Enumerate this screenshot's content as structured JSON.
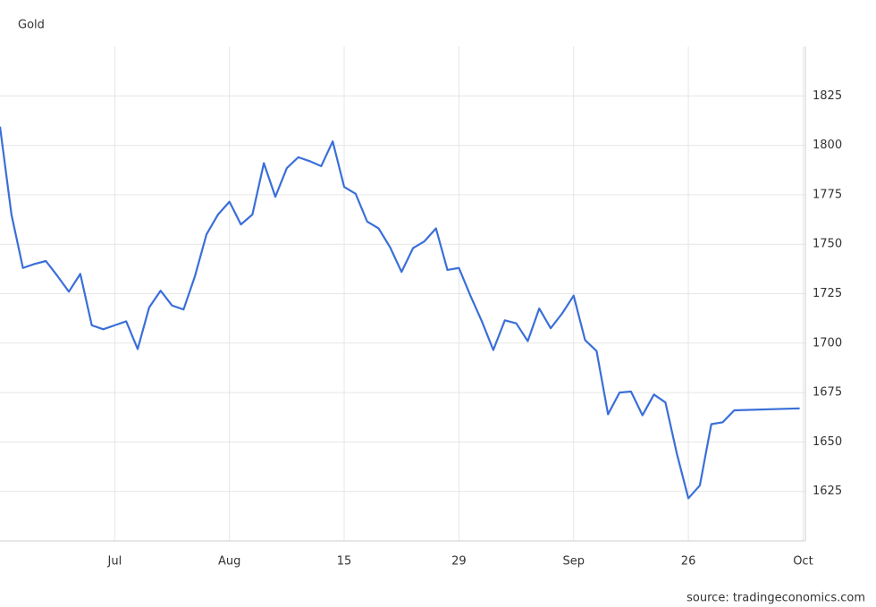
{
  "chart_data": {
    "type": "line",
    "title": "Gold",
    "source": "source: tradingeconomics.com",
    "x": [
      0,
      1,
      2,
      3,
      4,
      5,
      6,
      7,
      8,
      9,
      10,
      11,
      12,
      13,
      14,
      15,
      16,
      17,
      18,
      19,
      20,
      21,
      22,
      23,
      24,
      25,
      26,
      27,
      28,
      29,
      30,
      31,
      32,
      33,
      34,
      35,
      36,
      37,
      38,
      39,
      40,
      41,
      42,
      43,
      44,
      45,
      46,
      47,
      48,
      49,
      50,
      51,
      52,
      53,
      54,
      55,
      56,
      57,
      58,
      59,
      60,
      61,
      62,
      63,
      64,
      69.7
    ],
    "values": [
      1809.5,
      1765,
      1738,
      1740,
      1741.5,
      1734,
      1726,
      1735,
      1709,
      1707,
      1709,
      1711,
      1697,
      1718,
      1726.5,
      1719,
      1717,
      1734,
      1755,
      1765,
      1771.5,
      1760,
      1765,
      1791,
      1774,
      1788.5,
      1794,
      1792,
      1789.5,
      1802,
      1779,
      1775.5,
      1761.5,
      1758,
      1748.5,
      1736,
      1748,
      1751.5,
      1758,
      1737,
      1738,
      1724,
      1711,
      1696.5,
      1711.5,
      1710,
      1701,
      1717.5,
      1707.5,
      1715,
      1724,
      1701.5,
      1696,
      1664,
      1675,
      1675.5,
      1663.5,
      1674,
      1670,
      1644,
      1621.5,
      1628,
      1659,
      1660,
      1666,
      1667
    ],
    "color": "#3a6fd8",
    "xlim": [
      0,
      70.2
    ],
    "xticks": [
      {
        "value": 10,
        "label": "Jul"
      },
      {
        "value": 20,
        "label": "Aug"
      },
      {
        "value": 30,
        "label": "15"
      },
      {
        "value": 40,
        "label": "29"
      },
      {
        "value": 50,
        "label": "Sep"
      },
      {
        "value": 60,
        "label": "26"
      },
      {
        "value": 70,
        "label": "Oct"
      }
    ],
    "ylim": [
      1600,
      1850
    ],
    "yticks": [
      1625,
      1650,
      1675,
      1700,
      1725,
      1750,
      1775,
      1800,
      1825
    ],
    "grid": true
  }
}
